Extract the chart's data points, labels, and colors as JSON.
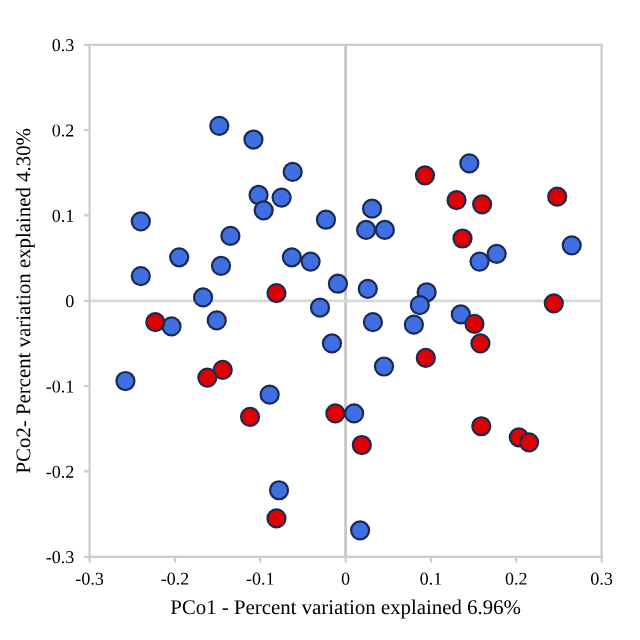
{
  "chart_data": {
    "type": "scatter",
    "xlabel": "PCo1 - Percent variation explained 6.96%",
    "ylabel": "PCo2- Percent variation explained 4.30%",
    "xlim": [
      -0.3,
      0.3
    ],
    "ylim": [
      -0.3,
      0.3
    ],
    "xticks": [
      -0.3,
      -0.2,
      -0.1,
      0,
      0.1,
      0.2,
      0.3
    ],
    "yticks": [
      -0.3,
      -0.2,
      -0.1,
      0,
      0.1,
      0.2,
      0.3
    ],
    "grid": false,
    "legend": false,
    "marker": "circle",
    "ref_lines": [
      {
        "axis": "x",
        "value": 0,
        "color": "#c8c8c8"
      },
      {
        "axis": "y",
        "value": 0,
        "color": "#d8d8d8"
      }
    ],
    "series": [
      {
        "color": "#3f6fe0",
        "x": [
          -0.148,
          -0.108,
          -0.062,
          -0.102,
          -0.075,
          -0.096,
          -0.24,
          -0.023,
          -0.135,
          -0.195,
          -0.063,
          -0.041,
          -0.146,
          -0.24,
          -0.009,
          -0.167,
          0.145,
          0.031,
          0.024,
          0.046,
          0.157,
          0.177,
          0.265,
          0.026,
          0.095,
          -0.03,
          -0.204,
          -0.151,
          -0.016,
          -0.258,
          -0.089,
          -0.078,
          0.087,
          0.135,
          0.032,
          0.08,
          0.045,
          0.01,
          0.017
        ],
        "values": [
          0.205,
          0.189,
          0.151,
          0.124,
          0.121,
          0.106,
          0.093,
          0.095,
          0.076,
          0.051,
          0.051,
          0.046,
          0.041,
          0.029,
          0.02,
          0.004,
          0.161,
          0.108,
          0.083,
          0.083,
          0.046,
          0.055,
          0.065,
          0.014,
          0.01,
          -0.008,
          -0.03,
          -0.023,
          -0.05,
          -0.094,
          -0.11,
          -0.222,
          -0.005,
          -0.016,
          -0.025,
          -0.028,
          -0.077,
          -0.132,
          -0.269
        ]
      },
      {
        "color": "#e00000",
        "x": [
          -0.081,
          0.093,
          0.13,
          0.16,
          0.248,
          0.137,
          -0.223,
          -0.144,
          -0.162,
          -0.112,
          -0.012,
          -0.081,
          0.244,
          0.151,
          0.158,
          0.094,
          0.019,
          0.159,
          0.203,
          0.215
        ],
        "values": [
          0.009,
          0.147,
          0.118,
          0.113,
          0.122,
          0.073,
          -0.025,
          -0.081,
          -0.09,
          -0.136,
          -0.132,
          -0.255,
          -0.003,
          -0.027,
          -0.05,
          -0.067,
          -0.169,
          -0.147,
          -0.16,
          -0.166
        ]
      }
    ]
  }
}
